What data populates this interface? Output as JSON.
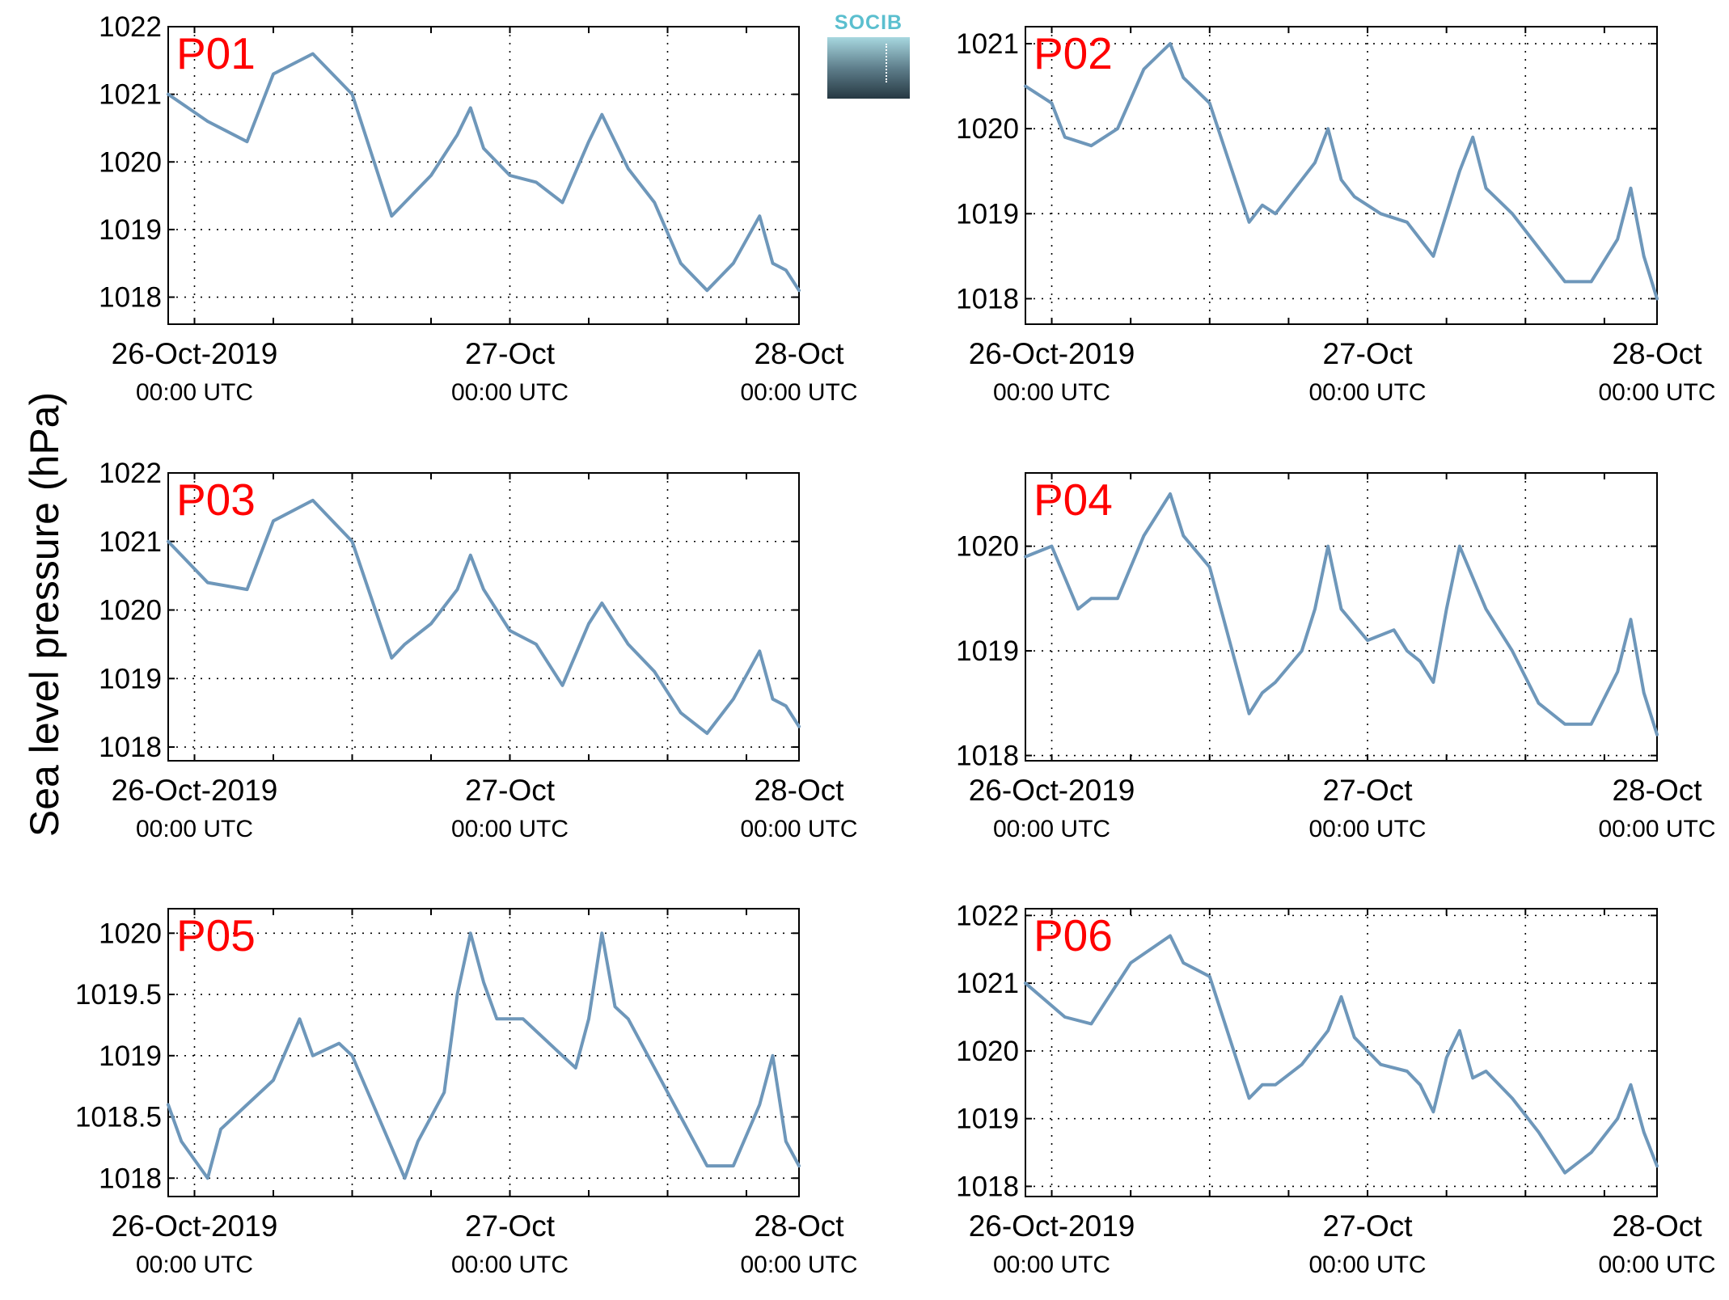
{
  "figure": {
    "ylabel": "Sea level pressure (hPa)",
    "logo_text": "SOCIB",
    "line_color": "#6e97ba",
    "panel_label_color": "#ff0000"
  },
  "chart_data": [
    {
      "type": "line",
      "label": "P01",
      "x_tick_labels": [
        [
          "26-Oct-2019",
          "00:00 UTC"
        ],
        [
          "27-Oct",
          "00:00 UTC"
        ],
        [
          "28-Oct",
          "00:00 UTC"
        ]
      ],
      "xlim_hours": [
        -2,
        46
      ],
      "ylim": [
        1017.6,
        1022
      ],
      "yticks": [
        1018,
        1019,
        1020,
        1021,
        1022
      ],
      "ytick_labels": [
        "1018",
        "1019",
        "1020",
        "1021",
        "1022"
      ],
      "grid": true,
      "series": [
        {
          "x_hours": [
            -2,
            1,
            4,
            6,
            9,
            12,
            15,
            16,
            18,
            20,
            21,
            22,
            24,
            26,
            28,
            30,
            31,
            33,
            35,
            37,
            39,
            41,
            43,
            44,
            45,
            46
          ],
          "y": [
            1021.0,
            1020.6,
            1020.3,
            1021.3,
            1021.6,
            1021.0,
            1019.2,
            1019.4,
            1019.8,
            1020.4,
            1020.8,
            1020.2,
            1019.8,
            1019.7,
            1019.4,
            1020.3,
            1020.7,
            1019.9,
            1019.4,
            1018.5,
            1018.1,
            1018.5,
            1019.2,
            1018.5,
            1018.4,
            1018.1
          ]
        }
      ]
    },
    {
      "type": "line",
      "label": "P02",
      "x_tick_labels": [
        [
          "26-Oct-2019",
          "00:00 UTC"
        ],
        [
          "27-Oct",
          "00:00 UTC"
        ],
        [
          "28-Oct",
          "00:00 UTC"
        ]
      ],
      "xlim_hours": [
        -2,
        46
      ],
      "ylim": [
        1017.7,
        1021.2
      ],
      "yticks": [
        1018,
        1019,
        1020,
        1021
      ],
      "ytick_labels": [
        "1018",
        "1019",
        "1020",
        "1021"
      ],
      "grid": true,
      "series": [
        {
          "x_hours": [
            -2,
            0,
            1,
            3,
            5,
            7,
            9,
            10,
            12,
            15,
            16,
            17,
            18,
            20,
            21,
            22,
            23,
            25,
            27,
            29,
            31,
            32,
            33,
            35,
            37,
            39,
            41,
            43,
            44,
            45,
            46
          ],
          "y": [
            1020.5,
            1020.3,
            1019.9,
            1019.8,
            1020.0,
            1020.7,
            1021.0,
            1020.6,
            1020.3,
            1018.9,
            1019.1,
            1019.0,
            1019.2,
            1019.6,
            1020.0,
            1019.4,
            1019.2,
            1019.0,
            1018.9,
            1018.5,
            1019.5,
            1019.9,
            1019.3,
            1019.0,
            1018.6,
            1018.2,
            1018.2,
            1018.7,
            1019.3,
            1018.5,
            1018.0
          ]
        }
      ]
    },
    {
      "type": "line",
      "label": "P03",
      "x_tick_labels": [
        [
          "26-Oct-2019",
          "00:00 UTC"
        ],
        [
          "27-Oct",
          "00:00 UTC"
        ],
        [
          "28-Oct",
          "00:00 UTC"
        ]
      ],
      "xlim_hours": [
        -2,
        46
      ],
      "ylim": [
        1017.8,
        1022
      ],
      "yticks": [
        1018,
        1019,
        1020,
        1021,
        1022
      ],
      "ytick_labels": [
        "1018",
        "1019",
        "1020",
        "1021",
        "1022"
      ],
      "grid": true,
      "series": [
        {
          "x_hours": [
            -2,
            1,
            4,
            6,
            9,
            12,
            15,
            16,
            18,
            20,
            21,
            22,
            24,
            26,
            28,
            30,
            31,
            33,
            35,
            37,
            39,
            41,
            43,
            44,
            45,
            46
          ],
          "y": [
            1021.0,
            1020.4,
            1020.3,
            1021.3,
            1021.6,
            1021.0,
            1019.3,
            1019.5,
            1019.8,
            1020.3,
            1020.8,
            1020.3,
            1019.7,
            1019.5,
            1018.9,
            1019.8,
            1020.1,
            1019.5,
            1019.1,
            1018.5,
            1018.2,
            1018.7,
            1019.4,
            1018.7,
            1018.6,
            1018.3
          ]
        }
      ]
    },
    {
      "type": "line",
      "label": "P04",
      "x_tick_labels": [
        [
          "26-Oct-2019",
          "00:00 UTC"
        ],
        [
          "27-Oct",
          "00:00 UTC"
        ],
        [
          "28-Oct",
          "00:00 UTC"
        ]
      ],
      "xlim_hours": [
        -2,
        46
      ],
      "ylim": [
        1017.95,
        1020.7
      ],
      "yticks": [
        1018,
        1019,
        1020
      ],
      "ytick_labels": [
        "1018",
        "1019",
        "1020"
      ],
      "grid": true,
      "series": [
        {
          "x_hours": [
            -2,
            0,
            1,
            2,
            3,
            5,
            7,
            9,
            10,
            12,
            15,
            16,
            17,
            19,
            20,
            21,
            22,
            24,
            26,
            27,
            28,
            29,
            30,
            31,
            33,
            35,
            37,
            39,
            41,
            43,
            44,
            45,
            46
          ],
          "y": [
            1019.9,
            1020.0,
            1019.7,
            1019.4,
            1019.5,
            1019.5,
            1020.1,
            1020.5,
            1020.1,
            1019.8,
            1018.4,
            1018.6,
            1018.7,
            1019.0,
            1019.4,
            1020.0,
            1019.4,
            1019.1,
            1019.2,
            1019.0,
            1018.9,
            1018.7,
            1019.4,
            1020.0,
            1019.4,
            1019.0,
            1018.5,
            1018.3,
            1018.3,
            1018.8,
            1019.3,
            1018.6,
            1018.2
          ]
        }
      ]
    },
    {
      "type": "line",
      "label": "P05",
      "x_tick_labels": [
        [
          "26-Oct-2019",
          "00:00 UTC"
        ],
        [
          "27-Oct",
          "00:00 UTC"
        ],
        [
          "28-Oct",
          "00:00 UTC"
        ]
      ],
      "xlim_hours": [
        -2,
        46
      ],
      "ylim": [
        1017.85,
        1020.2
      ],
      "yticks": [
        1018,
        1018.5,
        1019,
        1019.5,
        1020
      ],
      "ytick_labels": [
        "1018",
        "1018.5",
        "1019",
        "1019.5",
        "1020"
      ],
      "grid": true,
      "series": [
        {
          "x_hours": [
            -2,
            -1,
            1,
            2,
            4,
            6,
            8,
            9,
            11,
            12,
            14,
            16,
            17,
            19,
            20,
            21,
            22,
            23,
            25,
            28,
            29,
            30,
            31,
            32,
            33,
            35,
            37,
            39,
            41,
            43,
            44,
            45,
            46
          ],
          "y": [
            1018.6,
            1018.3,
            1018.0,
            1018.4,
            1018.6,
            1018.8,
            1019.3,
            1019.0,
            1019.1,
            1019.0,
            1018.5,
            1018.0,
            1018.3,
            1018.7,
            1019.5,
            1020.0,
            1019.6,
            1019.3,
            1019.3,
            1019.0,
            1018.9,
            1019.3,
            1020.0,
            1019.4,
            1019.3,
            1018.9,
            1018.5,
            1018.1,
            1018.1,
            1018.6,
            1019.0,
            1018.3,
            1018.1
          ]
        }
      ]
    },
    {
      "type": "line",
      "label": "P06",
      "x_tick_labels": [
        [
          "26-Oct-2019",
          "00:00 UTC"
        ],
        [
          "27-Oct",
          "00:00 UTC"
        ],
        [
          "28-Oct",
          "00:00 UTC"
        ]
      ],
      "xlim_hours": [
        -2,
        46
      ],
      "ylim": [
        1017.85,
        1022.1
      ],
      "yticks": [
        1018,
        1019,
        1020,
        1021,
        1022
      ],
      "ytick_labels": [
        "1018",
        "1019",
        "1020",
        "1021",
        "1022"
      ],
      "grid": true,
      "series": [
        {
          "x_hours": [
            -2,
            1,
            3,
            4,
            6,
            9,
            10,
            12,
            15,
            16,
            17,
            19,
            21,
            22,
            23,
            25,
            27,
            28,
            29,
            30,
            31,
            32,
            33,
            35,
            37,
            39,
            41,
            43,
            44,
            45,
            46
          ],
          "y": [
            1021.0,
            1020.5,
            1020.4,
            1020.7,
            1021.3,
            1021.7,
            1021.3,
            1021.1,
            1019.3,
            1019.5,
            1019.5,
            1019.8,
            1020.3,
            1020.8,
            1020.2,
            1019.8,
            1019.7,
            1019.5,
            1019.1,
            1019.9,
            1020.3,
            1019.6,
            1019.7,
            1019.3,
            1018.8,
            1018.2,
            1018.5,
            1019.0,
            1019.5,
            1018.8,
            1018.3
          ]
        }
      ]
    }
  ]
}
